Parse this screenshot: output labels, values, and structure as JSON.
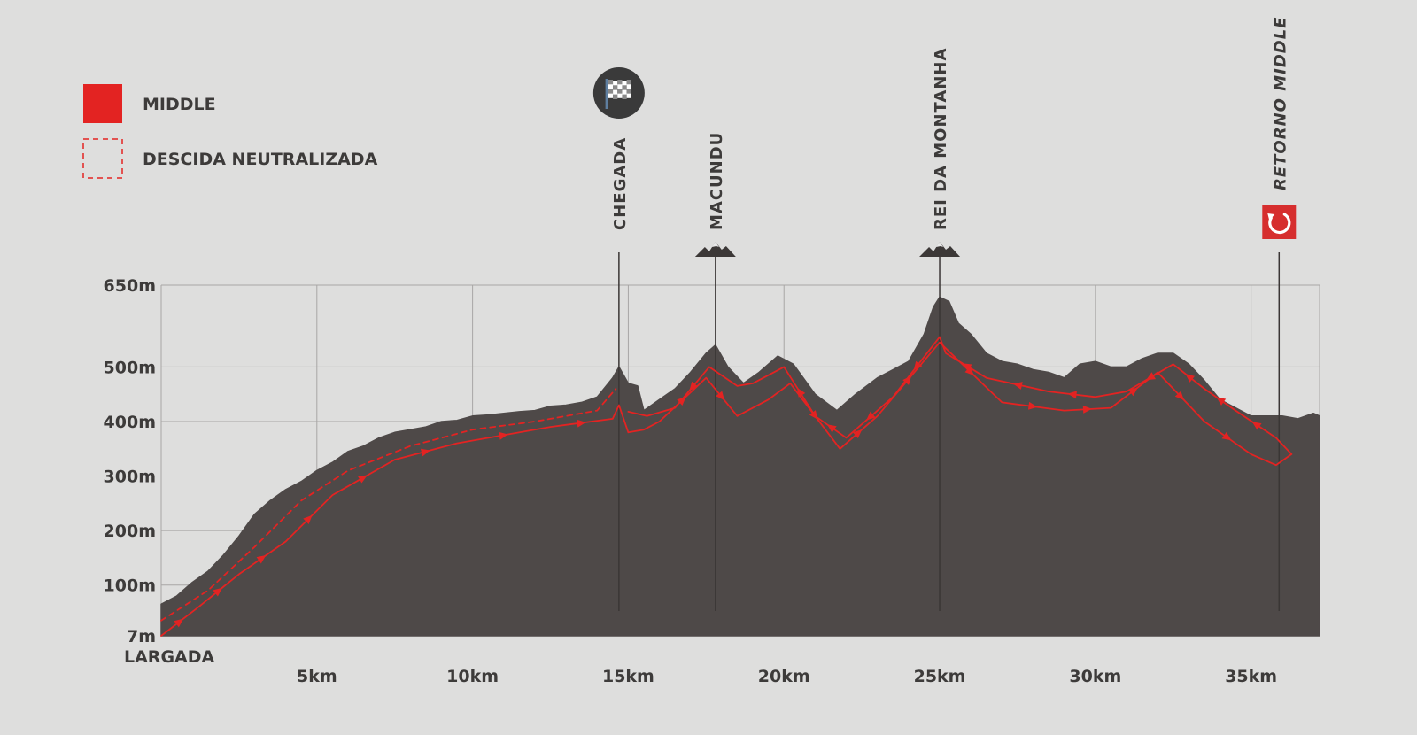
{
  "legend": {
    "placement": "top-left",
    "items": [
      {
        "label": "MIDDLE",
        "style": "solid",
        "color": "#e32322"
      },
      {
        "label": "DESCIDA NEUTRALIZADA",
        "style": "dashed",
        "color": "#e32322"
      }
    ]
  },
  "colors": {
    "background": "#dededd",
    "terrain": "#4e4948",
    "route": "#e32322",
    "grid": "#a8a6a5",
    "text": "#3d3b3a",
    "icon_dark": "#3a3a3a",
    "icon_red": "#d62e2e"
  },
  "chart_data": {
    "type": "area",
    "title": "",
    "xlabel": "",
    "ylabel": "",
    "xlim": [
      0,
      37.2
    ],
    "ylim": [
      7,
      650
    ],
    "grid": true,
    "start_label": "LARGADA",
    "x_ticks": [
      {
        "value": 5,
        "label": "5km"
      },
      {
        "value": 10,
        "label": "10km"
      },
      {
        "value": 15,
        "label": "15km"
      },
      {
        "value": 20,
        "label": "20km"
      },
      {
        "value": 25,
        "label": "25km"
      },
      {
        "value": 30,
        "label": "30km"
      },
      {
        "value": 35,
        "label": "35km"
      }
    ],
    "y_ticks": [
      {
        "value": 7,
        "label": "7m"
      },
      {
        "value": 100,
        "label": "100m"
      },
      {
        "value": 200,
        "label": "200m"
      },
      {
        "value": 300,
        "label": "300m"
      },
      {
        "value": 400,
        "label": "400m"
      },
      {
        "value": 500,
        "label": "500m"
      },
      {
        "value": 650,
        "label": "650m"
      }
    ],
    "elevation_profile": [
      [
        0,
        65
      ],
      [
        0.5,
        80
      ],
      [
        1,
        105
      ],
      [
        1.5,
        125
      ],
      [
        2,
        155
      ],
      [
        2.5,
        190
      ],
      [
        3,
        230
      ],
      [
        3.5,
        255
      ],
      [
        4,
        275
      ],
      [
        4.5,
        290
      ],
      [
        5,
        310
      ],
      [
        5.5,
        325
      ],
      [
        6,
        345
      ],
      [
        6.5,
        355
      ],
      [
        7,
        370
      ],
      [
        7.5,
        380
      ],
      [
        8,
        385
      ],
      [
        8.5,
        390
      ],
      [
        9,
        400
      ],
      [
        9.5,
        402
      ],
      [
        10,
        410
      ],
      [
        10.5,
        412
      ],
      [
        11,
        415
      ],
      [
        11.5,
        418
      ],
      [
        12,
        420
      ],
      [
        12.5,
        428
      ],
      [
        13,
        430
      ],
      [
        13.5,
        435
      ],
      [
        14,
        445
      ],
      [
        14.5,
        480
      ],
      [
        14.7,
        500
      ],
      [
        15,
        470
      ],
      [
        15.3,
        465
      ],
      [
        15.5,
        420
      ],
      [
        16,
        440
      ],
      [
        16.5,
        460
      ],
      [
        17,
        490
      ],
      [
        17.5,
        525
      ],
      [
        17.8,
        540
      ],
      [
        18.2,
        500
      ],
      [
        18.7,
        470
      ],
      [
        19.2,
        490
      ],
      [
        19.8,
        520
      ],
      [
        20.3,
        505
      ],
      [
        21,
        450
      ],
      [
        21.7,
        420
      ],
      [
        22.3,
        450
      ],
      [
        23,
        480
      ],
      [
        23.5,
        495
      ],
      [
        24,
        510
      ],
      [
        24.5,
        560
      ],
      [
        24.8,
        610
      ],
      [
        25,
        628
      ],
      [
        25.3,
        620
      ],
      [
        25.6,
        580
      ],
      [
        26,
        560
      ],
      [
        26.5,
        525
      ],
      [
        27,
        510
      ],
      [
        27.5,
        505
      ],
      [
        28,
        495
      ],
      [
        28.5,
        490
      ],
      [
        29,
        480
      ],
      [
        29.5,
        505
      ],
      [
        30,
        510
      ],
      [
        30.5,
        500
      ],
      [
        31,
        500
      ],
      [
        31.5,
        515
      ],
      [
        32,
        525
      ],
      [
        32.5,
        525
      ],
      [
        33,
        505
      ],
      [
        33.5,
        475
      ],
      [
        34,
        440
      ],
      [
        34.5,
        425
      ],
      [
        35,
        410
      ],
      [
        35.5,
        410
      ],
      [
        36,
        410
      ],
      [
        36.5,
        405
      ],
      [
        37,
        415
      ],
      [
        37.2,
        410
      ]
    ],
    "series": [
      {
        "name": "MIDDLE",
        "style": "solid",
        "color": "#e32322",
        "points": [
          [
            0,
            7
          ],
          [
            1.2,
            60
          ],
          [
            2.5,
            120
          ],
          [
            4,
            180
          ],
          [
            5.5,
            265
          ],
          [
            7.5,
            330
          ],
          [
            9.5,
            360
          ],
          [
            12.5,
            390
          ],
          [
            14.5,
            405
          ],
          [
            14.7,
            430
          ],
          [
            15,
            380
          ],
          [
            15.5,
            385
          ],
          [
            16,
            400
          ],
          [
            17.5,
            480
          ],
          [
            18.5,
            410
          ],
          [
            19.5,
            440
          ],
          [
            20.2,
            470
          ],
          [
            21.8,
            350
          ],
          [
            23,
            410
          ],
          [
            25,
            545
          ],
          [
            27,
            435
          ],
          [
            29,
            420
          ],
          [
            30.5,
            425
          ],
          [
            32,
            490
          ],
          [
            33.5,
            400
          ],
          [
            35,
            340
          ],
          [
            35.8,
            320
          ],
          [
            36.3,
            340
          ],
          [
            35.8,
            370
          ],
          [
            34.5,
            420
          ],
          [
            33.5,
            460
          ],
          [
            32.5,
            505
          ],
          [
            31,
            455
          ],
          [
            30,
            445
          ],
          [
            28.5,
            455
          ],
          [
            26.5,
            480
          ],
          [
            25.2,
            525
          ],
          [
            25,
            555
          ],
          [
            23.5,
            445
          ],
          [
            22,
            370
          ],
          [
            21,
            410
          ],
          [
            20,
            500
          ],
          [
            19,
            470
          ],
          [
            18.5,
            465
          ],
          [
            17.6,
            500
          ],
          [
            16.5,
            425
          ],
          [
            15.6,
            410
          ],
          [
            15,
            418
          ]
        ]
      },
      {
        "name": "DESCIDA NEUTRALIZADA",
        "style": "dashed",
        "color": "#e32322",
        "points": [
          [
            0,
            35
          ],
          [
            1.5,
            90
          ],
          [
            3,
            170
          ],
          [
            4.5,
            255
          ],
          [
            6,
            310
          ],
          [
            8,
            355
          ],
          [
            10,
            385
          ],
          [
            12,
            400
          ],
          [
            14,
            420
          ],
          [
            14.6,
            460
          ]
        ]
      }
    ],
    "annotations": [
      {
        "label": "CHEGADA",
        "x": 14.7,
        "icon": "checkered-flag-icon",
        "italic": false,
        "color": "#3d3b3a"
      },
      {
        "label": "MACUNDU",
        "x": 17.8,
        "icon": "mountain-peak-icon",
        "italic": false,
        "color": "#3d3b3a"
      },
      {
        "label": "REI DA MONTANHA",
        "x": 25,
        "icon": "mountain-peak-icon",
        "italic": false,
        "color": "#3d3b3a"
      },
      {
        "label": "RETORNO MIDDLE",
        "x": 35.9,
        "icon": "return-arrow-icon",
        "italic": true,
        "color": "#5c5a59"
      }
    ]
  }
}
